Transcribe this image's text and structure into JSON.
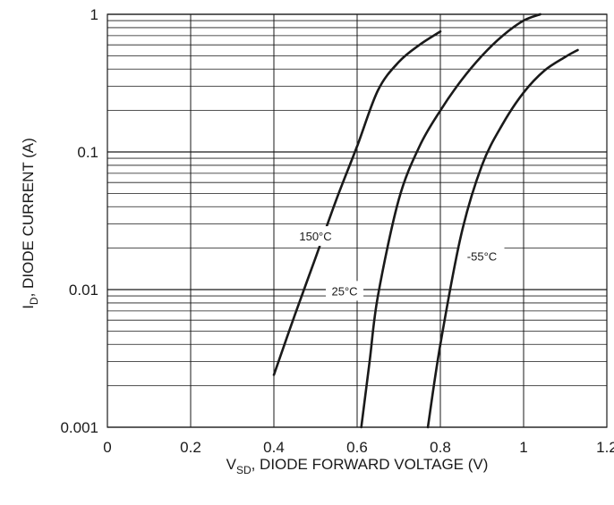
{
  "chart_data": {
    "type": "line",
    "title": "",
    "xlabel": {
      "main": "V",
      "sub": "SD",
      "rest": ", DIODE FORWARD VOLTAGE (V)"
    },
    "ylabel": {
      "main": "I",
      "sub": "D",
      "rest": ", DIODE CURRENT (A)"
    },
    "xlim": [
      0,
      1.2
    ],
    "ylim": [
      0.001,
      1
    ],
    "yscale": "log",
    "grid": true,
    "x_ticks": [
      {
        "value": 0,
        "label": "0"
      },
      {
        "value": 0.2,
        "label": "0.2"
      },
      {
        "value": 0.4,
        "label": "0.4"
      },
      {
        "value": 0.6,
        "label": "0.6"
      },
      {
        "value": 0.8,
        "label": "0.8"
      },
      {
        "value": 1.0,
        "label": "1"
      },
      {
        "value": 1.2,
        "label": "1.2"
      }
    ],
    "y_ticks": [
      {
        "value": 0.001,
        "label": "0.001"
      },
      {
        "value": 0.01,
        "label": "0.01"
      },
      {
        "value": 0.1,
        "label": "0.1"
      },
      {
        "value": 1,
        "label": "1"
      }
    ],
    "series": [
      {
        "name": "150°C",
        "color": "#1a1a1a",
        "points": [
          {
            "x": 0.4,
            "y": 0.0024
          },
          {
            "x": 0.45,
            "y": 0.0065
          },
          {
            "x": 0.5,
            "y": 0.017
          },
          {
            "x": 0.55,
            "y": 0.045
          },
          {
            "x": 0.6,
            "y": 0.11
          },
          {
            "x": 0.65,
            "y": 0.28
          },
          {
            "x": 0.7,
            "y": 0.45
          },
          {
            "x": 0.75,
            "y": 0.6
          },
          {
            "x": 0.8,
            "y": 0.75
          }
        ]
      },
      {
        "name": "25°C",
        "color": "#1a1a1a",
        "points": [
          {
            "x": 0.61,
            "y": 0.001
          },
          {
            "x": 0.63,
            "y": 0.003
          },
          {
            "x": 0.65,
            "y": 0.009
          },
          {
            "x": 0.7,
            "y": 0.045
          },
          {
            "x": 0.75,
            "y": 0.11
          },
          {
            "x": 0.8,
            "y": 0.2
          },
          {
            "x": 0.85,
            "y": 0.33
          },
          {
            "x": 0.9,
            "y": 0.5
          },
          {
            "x": 0.95,
            "y": 0.7
          },
          {
            "x": 1.0,
            "y": 0.9
          },
          {
            "x": 1.04,
            "y": 1.0
          }
        ]
      },
      {
        "name": "-55°C",
        "color": "#1a1a1a",
        "points": [
          {
            "x": 0.77,
            "y": 0.001
          },
          {
            "x": 0.8,
            "y": 0.004
          },
          {
            "x": 0.85,
            "y": 0.025
          },
          {
            "x": 0.9,
            "y": 0.08
          },
          {
            "x": 0.95,
            "y": 0.16
          },
          {
            "x": 1.0,
            "y": 0.27
          },
          {
            "x": 1.05,
            "y": 0.39
          },
          {
            "x": 1.1,
            "y": 0.49
          },
          {
            "x": 1.13,
            "y": 0.55
          }
        ]
      }
    ],
    "annotations": [
      {
        "text": "150°C",
        "x": 0.5,
        "y": 0.0245
      },
      {
        "text": "25°C",
        "x": 0.57,
        "y": 0.0098
      },
      {
        "text": "-55°C",
        "x": 0.9,
        "y": 0.0175
      }
    ]
  }
}
